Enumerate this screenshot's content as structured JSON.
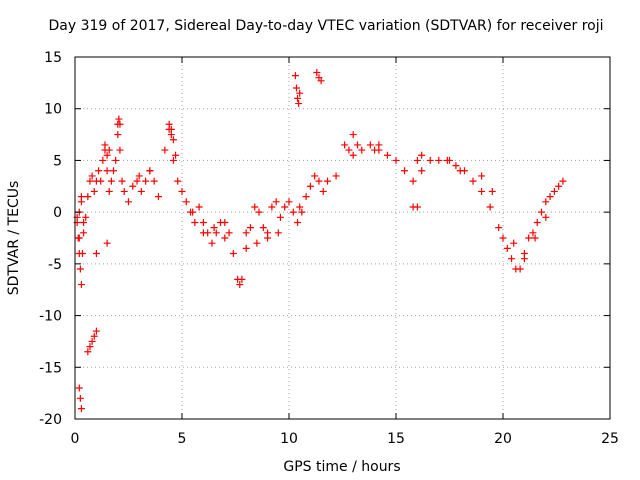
{
  "chart_data": {
    "type": "scatter",
    "title": "Day 319 of 2017, Sidereal Day-to-day VTEC variation (SDTVAR) for receiver roji",
    "xlabel": "GPS time / hours",
    "ylabel": "SDTVAR / TECUs",
    "xlim": [
      0,
      25
    ],
    "ylim": [
      -20,
      15
    ],
    "xticks": [
      0,
      5,
      10,
      15,
      20,
      25
    ],
    "yticks": [
      -20,
      -15,
      -10,
      -5,
      0,
      5,
      10,
      15
    ],
    "grid": true,
    "marker": "+",
    "series_color": "#ff0000",
    "series": [
      {
        "name": "SDTVAR",
        "x": [
          0.1,
          0.15,
          0.2,
          0.25,
          0.3,
          0.35,
          0.4,
          0.5,
          0.6,
          0.7,
          0.8,
          0.9,
          1.0,
          1.1,
          1.2,
          1.3,
          1.4,
          1.5,
          1.6,
          1.7,
          1.8,
          1.9,
          2.0,
          2.05,
          2.1,
          2.2,
          2.3,
          2.5,
          2.7,
          2.9,
          3.1,
          3.3,
          3.5,
          3.7,
          3.9,
          4.2,
          4.4,
          4.5,
          4.6,
          4.8,
          5.0,
          5.2,
          5.4,
          5.6,
          5.8,
          6.0,
          6.2,
          6.4,
          6.6,
          6.8,
          7.0,
          7.2,
          7.4,
          7.6,
          7.7,
          7.8,
          8.0,
          8.2,
          8.4,
          8.6,
          8.8,
          9.0,
          9.2,
          9.4,
          9.6,
          9.8,
          10.0,
          10.2,
          10.4,
          10.5,
          10.6,
          10.8,
          11.0,
          11.2,
          11.4,
          11.6,
          11.8,
          12.2,
          12.6,
          13.0,
          13.4,
          13.8,
          14.2,
          14.6,
          15.0,
          15.4,
          15.8,
          16.2,
          16.6,
          17.0,
          17.4,
          17.8,
          18.2,
          18.6,
          19.0,
          19.4,
          19.8,
          20.0,
          20.2,
          20.4,
          20.6,
          20.8,
          21.0,
          21.2,
          21.4,
          21.6,
          21.8,
          22.0,
          22.2,
          22.4,
          22.6,
          22.8,
          0.6,
          0.7,
          0.8,
          0.9,
          1.0,
          0.2,
          0.25,
          0.3,
          0.1,
          0.2,
          0.3,
          0.2,
          0.3,
          0.4,
          1.4,
          1.5,
          1.6,
          2.0,
          2.1,
          4.4,
          4.5,
          4.6,
          4.7,
          10.3,
          10.35,
          10.4,
          10.45,
          10.5,
          11.3,
          11.4,
          11.5,
          12.8,
          13.0,
          13.2,
          14.0,
          14.2,
          16.0,
          16.2,
          17.5,
          18.0,
          19.0,
          19.5,
          20.5,
          21.0,
          21.5,
          22.0,
          15.8,
          16.0,
          8.0,
          8.5,
          9.0,
          9.5,
          6.0,
          6.5,
          7.0,
          5.5,
          3.0,
          3.5,
          1.5,
          1.0
        ],
        "y": [
          -1.0,
          -2.5,
          -4.0,
          -5.5,
          -7.0,
          -4.0,
          -2.0,
          -0.5,
          1.5,
          3.0,
          3.5,
          2.0,
          3.0,
          4.0,
          3.0,
          5.0,
          6.0,
          4.0,
          2.0,
          3.0,
          4.0,
          5.0,
          8.5,
          9.0,
          6.0,
          3.0,
          2.0,
          1.0,
          2.5,
          3.0,
          2.0,
          3.0,
          4.0,
          3.0,
          1.5,
          6.0,
          8.0,
          7.5,
          5.0,
          3.0,
          2.0,
          1.0,
          0.0,
          -1.0,
          0.5,
          -1.0,
          -2.0,
          -3.0,
          -2.0,
          -1.0,
          -1.0,
          -2.0,
          -4.0,
          -6.5,
          -7.0,
          -6.5,
          -2.0,
          -1.5,
          0.5,
          0.0,
          -1.5,
          -2.0,
          0.5,
          1.0,
          -0.5,
          0.5,
          1.0,
          0.0,
          -1.0,
          0.5,
          0.0,
          1.5,
          2.5,
          3.5,
          3.0,
          2.0,
          3.0,
          3.5,
          6.5,
          7.5,
          6.0,
          6.5,
          6.0,
          5.5,
          5.0,
          4.0,
          3.0,
          4.0,
          5.0,
          5.0,
          5.0,
          4.5,
          4.0,
          3.0,
          2.0,
          0.5,
          -1.5,
          -2.5,
          -3.5,
          -4.5,
          -5.5,
          -5.5,
          -4.0,
          -2.5,
          -2.0,
          -1.0,
          0.0,
          1.0,
          1.5,
          2.0,
          2.5,
          3.0,
          -13.5,
          -13.0,
          -12.5,
          -12.0,
          -11.5,
          -17.0,
          -18.0,
          -19.0,
          -0.5,
          -2.5,
          1.5,
          0.0,
          1.0,
          -1.0,
          6.5,
          5.5,
          6.0,
          7.5,
          8.5,
          8.5,
          8.0,
          7.0,
          5.5,
          13.2,
          12.0,
          11.0,
          10.5,
          11.5,
          13.5,
          13.0,
          12.7,
          6.0,
          5.5,
          6.5,
          6.0,
          6.5,
          5.0,
          5.5,
          5.0,
          4.0,
          3.5,
          2.0,
          -3.0,
          -4.5,
          -2.5,
          -0.5,
          0.5,
          0.5,
          -3.5,
          -3.0,
          -2.5,
          -2.0,
          -2.0,
          -1.5,
          -2.5,
          0.0,
          3.5,
          4.0,
          -3.0,
          -4.0
        ]
      }
    ]
  }
}
